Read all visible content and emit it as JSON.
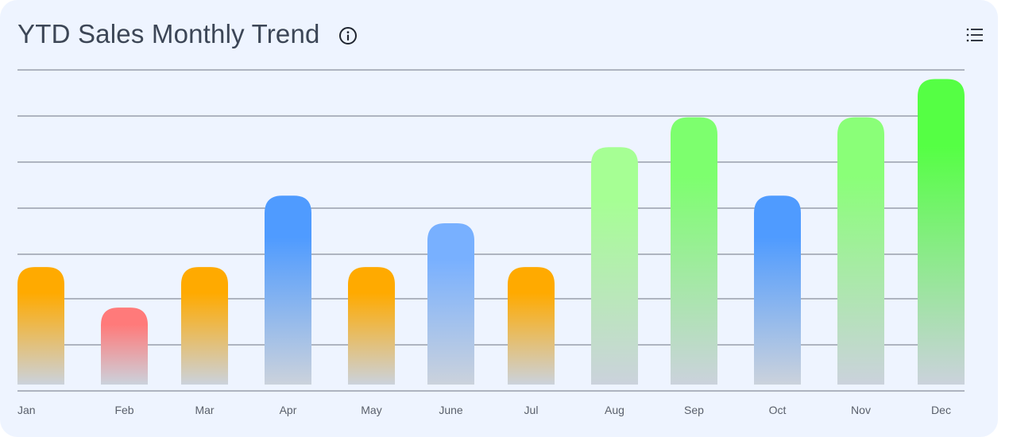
{
  "header": {
    "title": "YTD Sales Monthly Trend",
    "info_icon": "info-circle-icon",
    "menu_icon": "list-menu-icon"
  },
  "chart_data": {
    "type": "bar",
    "title": "YTD Sales Monthly Trend",
    "xlabel": "",
    "ylabel": "",
    "grid": true,
    "legend": "none",
    "ylim": [
      0,
      7
    ],
    "categories": [
      "Jan",
      "Feb",
      "Mar",
      "Apr",
      "May",
      "June",
      "Jul",
      "Aug",
      "Sep",
      "Oct",
      "Nov",
      "Dec"
    ],
    "values": [
      2.55,
      1.67,
      2.55,
      4.1,
      2.55,
      3.5,
      2.55,
      5.15,
      5.8,
      4.1,
      5.8,
      6.63
    ],
    "bar_colors": [
      "#ffaa00",
      "#ff7a7a",
      "#ffaa00",
      "#4f9bff",
      "#ffaa00",
      "#78b0ff",
      "#ffaa00",
      "#a6ff94",
      "#7dff6e",
      "#4f9bff",
      "#8aff78",
      "#55ff44"
    ],
    "fade_color": "#cbd2dc",
    "grid_color": "#6e7480"
  }
}
